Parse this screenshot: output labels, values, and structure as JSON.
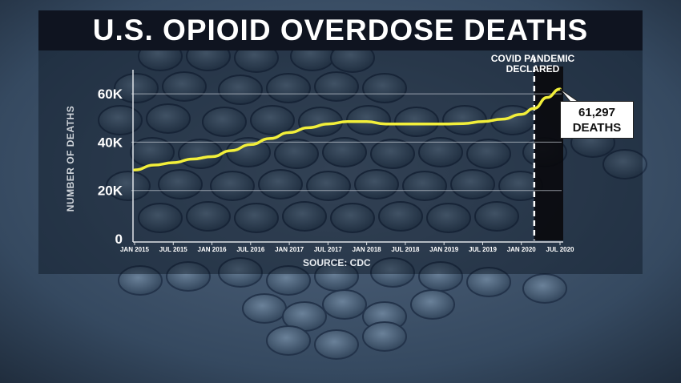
{
  "title": "U.S. OPIOID OVERDOSE DEATHS",
  "source": "SOURCE: CDC",
  "annotation": {
    "line1": "COVID PANDEMIC",
    "line2": "DECLARED"
  },
  "callout": {
    "value": "61,297",
    "unit": "DEATHS"
  },
  "colors": {
    "line": "#f2ef3a",
    "title_bg": "#0f1420",
    "text": "#ffffff"
  },
  "chart_data": {
    "type": "line",
    "title": "U.S. OPIOID OVERDOSE DEATHS",
    "ylabel": "NUMBER OF DEATHS",
    "xlabel": "",
    "ylim": [
      0,
      68000
    ],
    "ytick_values": [
      0,
      20000,
      40000,
      60000
    ],
    "ytick_labels": [
      "0",
      "20K",
      "40K",
      "60K"
    ],
    "xtick_labels": [
      "JAN 2015",
      "JUL 2015",
      "JAN 2016",
      "JUL 2016",
      "JAN 2017",
      "JUL 2017",
      "JAN 2018",
      "JUL 2018",
      "JAN 2019",
      "JUL 2019",
      "JAN 2020",
      "JUL 2020"
    ],
    "x_start": "2015-01",
    "x_end": "2020-07",
    "covid_marker": "2020-03",
    "grid": true,
    "series": [
      {
        "x": [
          "2015-01",
          "2015-04",
          "2015-07",
          "2015-10",
          "2016-01",
          "2016-04",
          "2016-07",
          "2016-10",
          "2017-01",
          "2017-04",
          "2017-07",
          "2017-10",
          "2018-01",
          "2018-04",
          "2018-07",
          "2018-10",
          "2019-01",
          "2019-04",
          "2019-07",
          "2019-10",
          "2020-01",
          "2020-03",
          "2020-05",
          "2020-07"
        ],
        "values": [
          28500,
          30500,
          31500,
          33000,
          34000,
          36500,
          39000,
          41500,
          44000,
          46000,
          47500,
          48500,
          48500,
          47500,
          47500,
          47500,
          47500,
          47700,
          48500,
          49500,
          51500,
          54000,
          58500,
          62000
        ]
      }
    ],
    "annotations": [
      "COVID PANDEMIC DECLARED",
      "61,297 DEATHS"
    ]
  }
}
